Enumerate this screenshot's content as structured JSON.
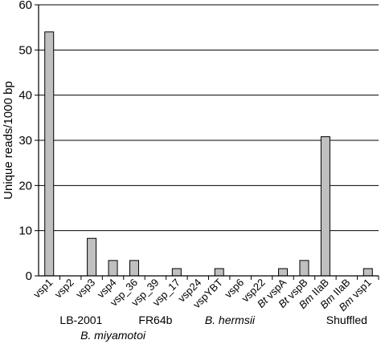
{
  "chart_data": {
    "type": "bar",
    "title": "",
    "xlabel": "",
    "ylabel": "Unique reads/1000 bp",
    "ylim": [
      0,
      60
    ],
    "yticks": [
      0,
      10,
      20,
      30,
      40,
      50,
      60
    ],
    "grid": true,
    "bar_color": "#c0c0c0",
    "categories": [
      {
        "parts": [
          {
            "t": "vsp1",
            "i": false
          }
        ]
      },
      {
        "parts": [
          {
            "t": "vsp2",
            "i": false
          }
        ]
      },
      {
        "parts": [
          {
            "t": "vsp3",
            "i": false
          }
        ]
      },
      {
        "parts": [
          {
            "t": "vsp4",
            "i": false
          }
        ]
      },
      {
        "parts": [
          {
            "t": "vsp_36",
            "i": false
          }
        ]
      },
      {
        "parts": [
          {
            "t": "vsp_39",
            "i": false
          }
        ]
      },
      {
        "parts": [
          {
            "t": "vsp_17",
            "i": false
          }
        ]
      },
      {
        "parts": [
          {
            "t": "vsp24",
            "i": false
          }
        ]
      },
      {
        "parts": [
          {
            "t": "vspYBT",
            "i": false
          }
        ]
      },
      {
        "parts": [
          {
            "t": "vsp6",
            "i": false
          }
        ]
      },
      {
        "parts": [
          {
            "t": "vsp22",
            "i": false
          }
        ]
      },
      {
        "parts": [
          {
            "t": "Bt",
            "i": true
          },
          {
            "t": " vspA",
            "i": false
          }
        ]
      },
      {
        "parts": [
          {
            "t": "Bt",
            "i": true
          },
          {
            "t": " vspB",
            "i": false
          }
        ]
      },
      {
        "parts": [
          {
            "t": "Bm",
            "i": true
          },
          {
            "t": " IIaB",
            "i": false
          }
        ]
      },
      {
        "parts": [
          {
            "t": "Bm",
            "i": true
          },
          {
            "t": " IIaB",
            "i": false
          }
        ]
      },
      {
        "parts": [
          {
            "t": "Bm",
            "i": true
          },
          {
            "t": " vsp1",
            "i": false
          }
        ]
      }
    ],
    "values": [
      54,
      0,
      8.3,
      3.4,
      3.4,
      0,
      1.6,
      0,
      1.6,
      0,
      0,
      1.6,
      3.4,
      30.8,
      0,
      1.6
    ],
    "groups": [
      {
        "label": "LB-2001",
        "italic": false,
        "from": 0,
        "to": 3
      },
      {
        "label": "FR64b",
        "italic": false,
        "from": 4,
        "to": 6
      },
      {
        "label": "Shuffled",
        "italic": false,
        "from": 13,
        "to": 15
      }
    ],
    "species": [
      {
        "label": "B. miyamotoi",
        "italic": true,
        "from": 0,
        "to": 6
      },
      {
        "label": "B. hermsii",
        "italic": true,
        "from": 7,
        "to": 10
      }
    ]
  }
}
